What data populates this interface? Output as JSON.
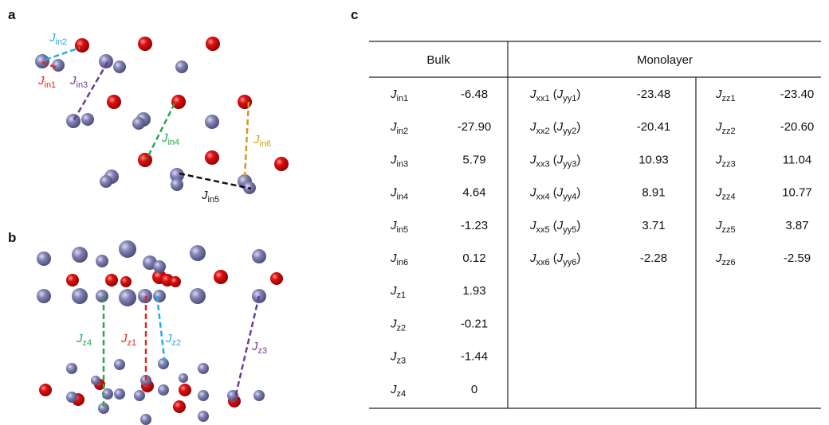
{
  "panels": {
    "a": {
      "letter": "a",
      "labels": [
        [
          {
            "i": "J"
          },
          {
            "s": "in2"
          }
        ],
        [
          {
            "i": "J"
          },
          {
            "s": "in1"
          }
        ],
        [
          {
            "i": "J"
          },
          {
            "s": "in3"
          }
        ],
        [
          {
            "i": "J"
          },
          {
            "s": "in4"
          }
        ],
        [
          {
            "i": "J"
          },
          {
            "s": "in6"
          }
        ],
        [
          {
            "i": "J"
          },
          {
            "s": "in5"
          }
        ]
      ]
    },
    "b": {
      "letter": "b",
      "labels": [
        [
          {
            "i": "J"
          },
          {
            "s": "z4"
          }
        ],
        [
          {
            "i": "J"
          },
          {
            "s": "z1"
          }
        ],
        [
          {
            "i": "J"
          },
          {
            "s": "z2"
          }
        ],
        [
          {
            "i": "J"
          },
          {
            "s": "z3"
          }
        ]
      ]
    },
    "c": {
      "letter": "c"
    }
  },
  "table": {
    "header": [
      "Bulk",
      "Monolayer"
    ],
    "bulk": [
      {
        "label": [
          {
            "i": "J"
          },
          {
            "s": "in1"
          }
        ],
        "value": "-6.48"
      },
      {
        "label": [
          {
            "i": "J"
          },
          {
            "s": "in2"
          }
        ],
        "value": "-27.90"
      },
      {
        "label": [
          {
            "i": "J"
          },
          {
            "s": "in3"
          }
        ],
        "value": "5.79"
      },
      {
        "label": [
          {
            "i": "J"
          },
          {
            "s": "in4"
          }
        ],
        "value": "4.64"
      },
      {
        "label": [
          {
            "i": "J"
          },
          {
            "s": "in5"
          }
        ],
        "value": "-1.23"
      },
      {
        "label": [
          {
            "i": "J"
          },
          {
            "s": "in6"
          }
        ],
        "value": "0.12"
      },
      {
        "label": [
          {
            "i": "J"
          },
          {
            "s": "z1"
          }
        ],
        "value": "1.93"
      },
      {
        "label": [
          {
            "i": "J"
          },
          {
            "s": "z2"
          }
        ],
        "value": "-0.21"
      },
      {
        "label": [
          {
            "i": "J"
          },
          {
            "s": "z3"
          }
        ],
        "value": "-1.44"
      },
      {
        "label": [
          {
            "i": "J"
          },
          {
            "s": "z4"
          }
        ],
        "value": "0"
      }
    ],
    "monolayer": [
      {
        "xx": [
          {
            "i": "J"
          },
          {
            "s": "xx1"
          },
          {
            "t": " ("
          },
          {
            "i": "J"
          },
          {
            "s": "yy1"
          },
          {
            "t": ")"
          }
        ],
        "xx_value": "-23.48",
        "zz": [
          {
            "i": "J"
          },
          {
            "s": "zz1"
          }
        ],
        "zz_value": "-23.40"
      },
      {
        "xx": [
          {
            "i": "J"
          },
          {
            "s": "xx2"
          },
          {
            "t": " ("
          },
          {
            "i": "J"
          },
          {
            "s": "yy2"
          },
          {
            "t": ")"
          }
        ],
        "xx_value": "-20.41",
        "zz": [
          {
            "i": "J"
          },
          {
            "s": "zz2"
          }
        ],
        "zz_value": "-20.60"
      },
      {
        "xx": [
          {
            "i": "J"
          },
          {
            "s": "xx3"
          },
          {
            "t": " ("
          },
          {
            "i": "J"
          },
          {
            "s": "yy3"
          },
          {
            "t": ")"
          }
        ],
        "xx_value": "10.93",
        "zz": [
          {
            "i": "J"
          },
          {
            "s": "zz3"
          }
        ],
        "zz_value": "11.04"
      },
      {
        "xx": [
          {
            "i": "J"
          },
          {
            "s": "xx4"
          },
          {
            "t": " ("
          },
          {
            "i": "J"
          },
          {
            "s": "yy4"
          },
          {
            "t": ")"
          }
        ],
        "xx_value": "8.91",
        "zz": [
          {
            "i": "J"
          },
          {
            "s": "zz4"
          }
        ],
        "zz_value": "10.77"
      },
      {
        "xx": [
          {
            "i": "J"
          },
          {
            "s": "xx5"
          },
          {
            "t": " ("
          },
          {
            "i": "J"
          },
          {
            "s": "yy5"
          },
          {
            "t": ")"
          }
        ],
        "xx_value": "3.71",
        "zz": [
          {
            "i": "J"
          },
          {
            "s": "zz5"
          }
        ],
        "zz_value": "3.87"
      },
      {
        "xx": [
          {
            "i": "J"
          },
          {
            "s": "xx6"
          },
          {
            "t": " ("
          },
          {
            "i": "J"
          },
          {
            "s": "yy6"
          },
          {
            "t": ")"
          }
        ],
        "xx_value": "-2.28",
        "zz": [
          {
            "i": "J"
          },
          {
            "s": "zz6"
          }
        ],
        "zz_value": "-2.59"
      }
    ]
  }
}
